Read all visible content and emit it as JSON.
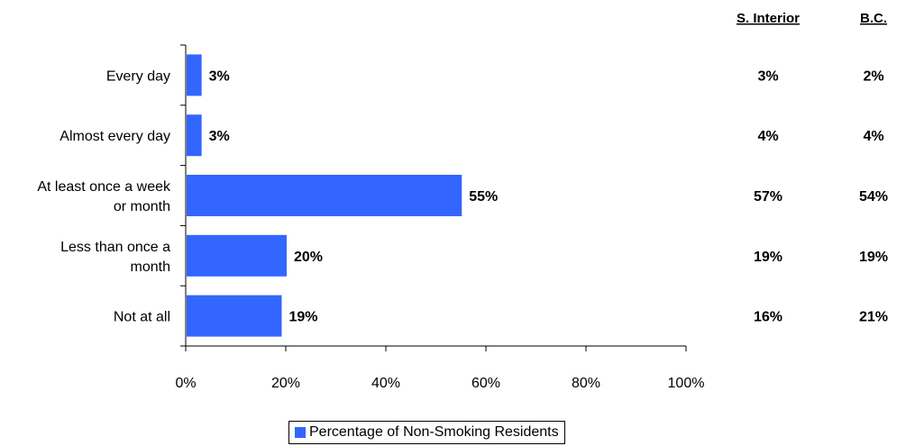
{
  "chart_data": {
    "type": "bar",
    "orientation": "horizontal",
    "categories": [
      [
        "Every day"
      ],
      [
        "Almost every day"
      ],
      [
        "At least once a week",
        "or month"
      ],
      [
        "Less than once a",
        "month"
      ],
      [
        "Not at all"
      ]
    ],
    "series": [
      {
        "name": "Percentage of Non-Smoking Residents",
        "values": [
          3,
          3,
          55,
          20,
          19
        ],
        "color": "#3366FF"
      }
    ],
    "value_labels": [
      "3%",
      "3%",
      "55%",
      "20%",
      "19%"
    ],
    "xlim": [
      0,
      100
    ],
    "x_ticks": [
      "0%",
      "20%",
      "40%",
      "60%",
      "80%",
      "100%"
    ],
    "grid": false,
    "legend_position": "bottom",
    "comparison_columns": [
      {
        "header": "S. Interior",
        "values": [
          "3%",
          "4%",
          "57%",
          "19%",
          "16%"
        ]
      },
      {
        "header": "B.C.",
        "values": [
          "2%",
          "4%",
          "54%",
          "19%",
          "21%"
        ]
      }
    ]
  },
  "legend": {
    "label": "Percentage of Non-Smoking Residents",
    "color": "#3366FF"
  }
}
